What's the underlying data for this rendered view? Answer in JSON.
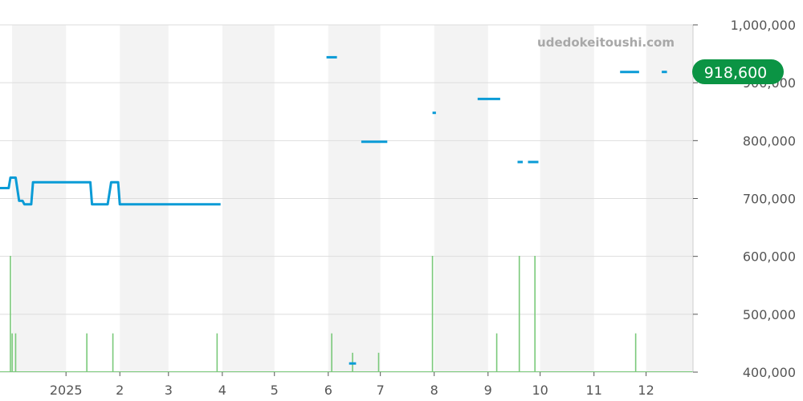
{
  "watermark": "udedokeitoushi.com",
  "current_price_label": "918,600",
  "colors": {
    "price_line": "#0a9bd6",
    "volume_bar": "#7ac97a",
    "badge": "#0b9444",
    "band": "#f3f3f3",
    "grid": "#dddddd"
  },
  "chart_data": {
    "type": "line",
    "title": "",
    "xlabel": "",
    "ylabel": "",
    "ylim": [
      400000,
      1000000
    ],
    "y_ticks": [
      "1,000,000",
      "900,000",
      "800,000",
      "700,000",
      "600,000",
      "500,000",
      "400,000"
    ],
    "y_tick_values": [
      1000000,
      900000,
      800000,
      700000,
      600000,
      500000,
      400000
    ],
    "x_ticks": [
      "2025",
      "2",
      "3",
      "4",
      "5",
      "6",
      "7",
      "8",
      "9",
      "10",
      "11",
      "12"
    ],
    "x_range": [
      "2024-11-24",
      "2025-12-28"
    ],
    "x_tick_dates": [
      "2025-01-01",
      "2025-02-01",
      "2025-03-01",
      "2025-04-01",
      "2025-05-01",
      "2025-06-01",
      "2025-07-01",
      "2025-08-01",
      "2025-09-01",
      "2025-10-01",
      "2025-11-01",
      "2025-12-01"
    ],
    "shaded_months": [
      "2024-12",
      "2025-02",
      "2025-04",
      "2025-06",
      "2025-08",
      "2025-10",
      "2025-12"
    ],
    "series": [
      {
        "segments": [
          [
            [
              "2024-11-24",
              718000
            ],
            [
              "2024-11-29",
              718000
            ],
            [
              "2024-11-30",
              736000
            ],
            [
              "2024-12-03",
              736000
            ],
            [
              "2024-12-05",
              696000
            ],
            [
              "2024-12-07",
              696000
            ],
            [
              "2024-12-08",
              690000
            ],
            [
              "2024-12-12",
              690000
            ],
            [
              "2024-12-13",
              728000
            ],
            [
              "2025-01-15",
              728000
            ],
            [
              "2025-01-16",
              690000
            ],
            [
              "2025-01-25",
              690000
            ],
            [
              "2025-01-27",
              728000
            ],
            [
              "2025-01-31",
              728000
            ],
            [
              "2025-02-01",
              690000
            ],
            [
              "2025-03-31",
              690000
            ]
          ],
          [
            [
              "2025-05-31",
              944000
            ],
            [
              "2025-06-06",
              944000
            ]
          ],
          [
            [
              "2025-06-13",
              415000
            ],
            [
              "2025-06-17",
              415000
            ]
          ],
          [
            [
              "2025-06-20",
              798000
            ],
            [
              "2025-07-05",
              798000
            ]
          ],
          [
            [
              "2025-07-31",
              848000
            ],
            [
              "2025-08-02",
              848000
            ]
          ],
          [
            [
              "2025-08-26",
              872000
            ],
            [
              "2025-09-08",
              872000
            ]
          ],
          [
            [
              "2025-09-18",
              763000
            ],
            [
              "2025-09-21",
              763000
            ]
          ],
          [
            [
              "2025-09-24",
              763000
            ],
            [
              "2025-09-30",
              763000
            ]
          ],
          [
            [
              "2025-11-16",
              918600
            ],
            [
              "2025-11-27",
              918600
            ]
          ],
          [
            [
              "2025-12-10",
              918600
            ],
            [
              "2025-12-13",
              918600
            ]
          ]
        ]
      }
    ],
    "volume": [
      [
        "2024-11-30",
        6
      ],
      [
        "2024-12-01",
        2
      ],
      [
        "2024-12-03",
        2
      ],
      [
        "2025-01-13",
        2
      ],
      [
        "2025-01-28",
        2
      ],
      [
        "2025-03-29",
        2
      ],
      [
        "2025-06-03",
        2
      ],
      [
        "2025-06-15",
        1
      ],
      [
        "2025-06-30",
        1
      ],
      [
        "2025-07-31",
        6
      ],
      [
        "2025-09-06",
        2
      ],
      [
        "2025-09-19",
        6
      ],
      [
        "2025-09-28",
        6
      ],
      [
        "2025-11-25",
        2
      ]
    ],
    "volume_max_units": 6
  }
}
